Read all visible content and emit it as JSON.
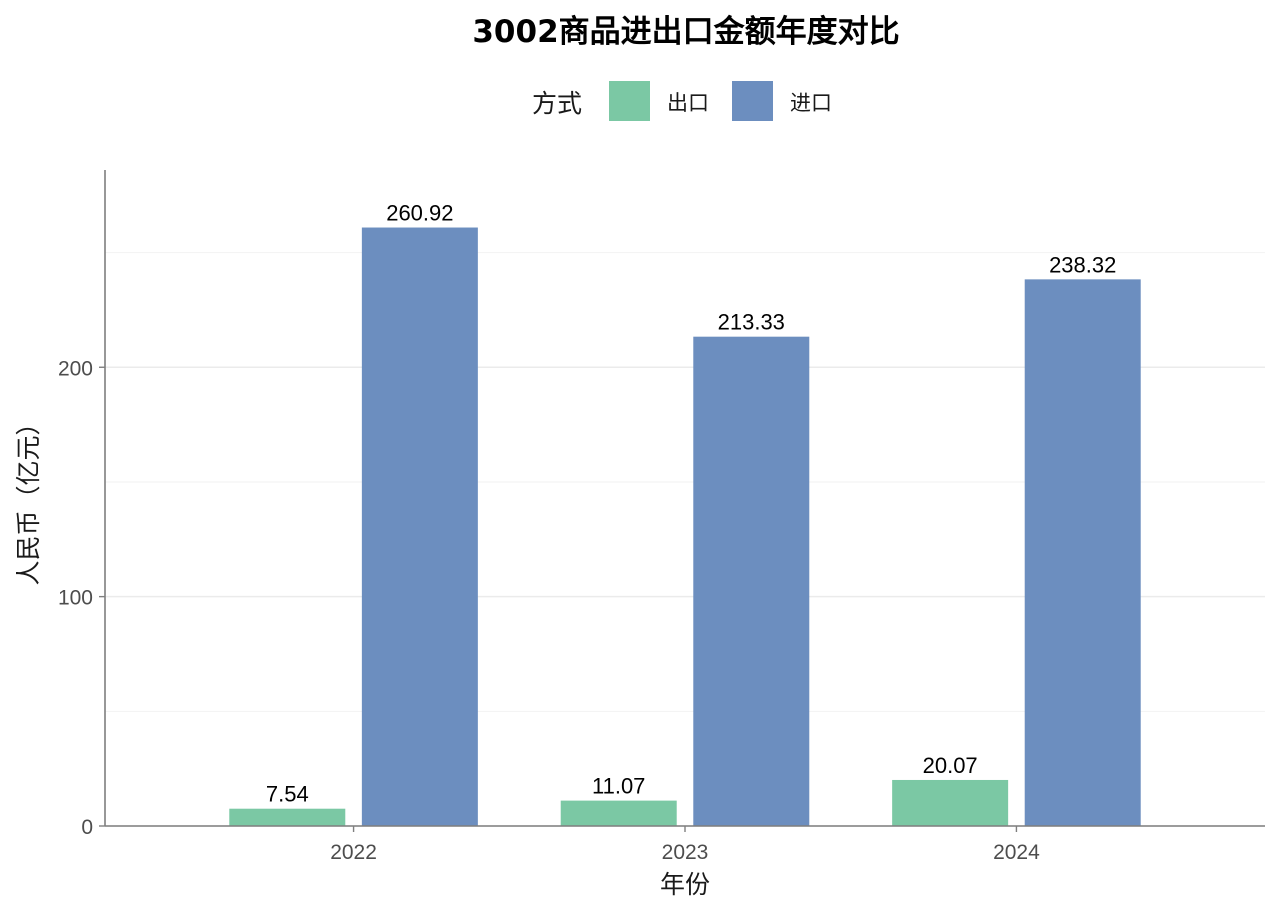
{
  "chart_data": {
    "type": "bar",
    "title": "3002商品进出口金额年度对比",
    "xlabel": "年份",
    "ylabel": "人民币（亿元）",
    "categories": [
      "2022",
      "2023",
      "2024"
    ],
    "series": [
      {
        "name": "出口",
        "color": "#7BC8A4",
        "values": [
          7.54,
          11.07,
          20.07
        ]
      },
      {
        "name": "进口",
        "color": "#6C8EBF",
        "values": [
          260.92,
          213.33,
          238.32
        ]
      }
    ],
    "value_labels": [
      [
        "7.54",
        "11.07",
        "20.07"
      ],
      [
        "260.92",
        "213.33",
        "238.32"
      ]
    ],
    "legend": {
      "title": "方式",
      "placement": "top"
    },
    "ylim": [
      0,
      286
    ],
    "y_ticks": [
      0,
      100,
      200
    ],
    "y_tick_labels": [
      "0",
      "100",
      "200"
    ],
    "y_minor_ticks": [
      50,
      150,
      250
    ],
    "grid": true
  }
}
